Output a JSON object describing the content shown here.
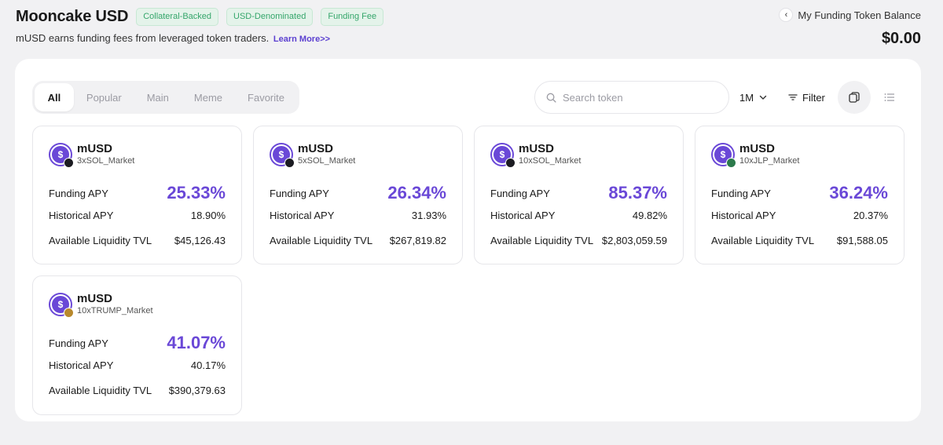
{
  "header": {
    "title": "Mooncake USD",
    "tags": [
      "Collateral-Backed",
      "USD-Denominated",
      "Funding Fee"
    ],
    "subtitle": "mUSD earns funding fees from leveraged token traders.",
    "learn_more": "Learn More>>",
    "balance_label": "My Funding Token Balance",
    "balance_value": "$0.00",
    "back_icon": "chevron-left-icon"
  },
  "toolbar": {
    "tabs": [
      "All",
      "Popular",
      "Main",
      "Meme",
      "Favorite"
    ],
    "active_tab": "All",
    "search_placeholder": "Search token",
    "period": "1M",
    "filter_label": "Filter"
  },
  "labels": {
    "funding_apy": "Funding APY",
    "historical_apy": "Historical APY",
    "tvl": "Available Liquidity TVL"
  },
  "cards": [
    {
      "token": "mUSD",
      "market": "3xSOL_Market",
      "funding_apy": "25.33%",
      "historical_apy": "18.90%",
      "tvl": "$45,126.43"
    },
    {
      "token": "mUSD",
      "market": "5xSOL_Market",
      "funding_apy": "26.34%",
      "historical_apy": "31.93%",
      "tvl": "$267,819.82"
    },
    {
      "token": "mUSD",
      "market": "10xSOL_Market",
      "funding_apy": "85.37%",
      "historical_apy": "49.82%",
      "tvl": "$2,803,059.59"
    },
    {
      "token": "mUSD",
      "market": "10xJLP_Market",
      "funding_apy": "36.24%",
      "historical_apy": "20.37%",
      "tvl": "$91,588.05"
    },
    {
      "token": "mUSD",
      "market": "10xTRUMP_Market",
      "funding_apy": "41.07%",
      "historical_apy": "40.17%",
      "tvl": "$390,379.63"
    }
  ],
  "colors": {
    "accent": "#6a48d7",
    "tag_text": "#35a66b",
    "tag_bg": "#e4f3ea"
  }
}
